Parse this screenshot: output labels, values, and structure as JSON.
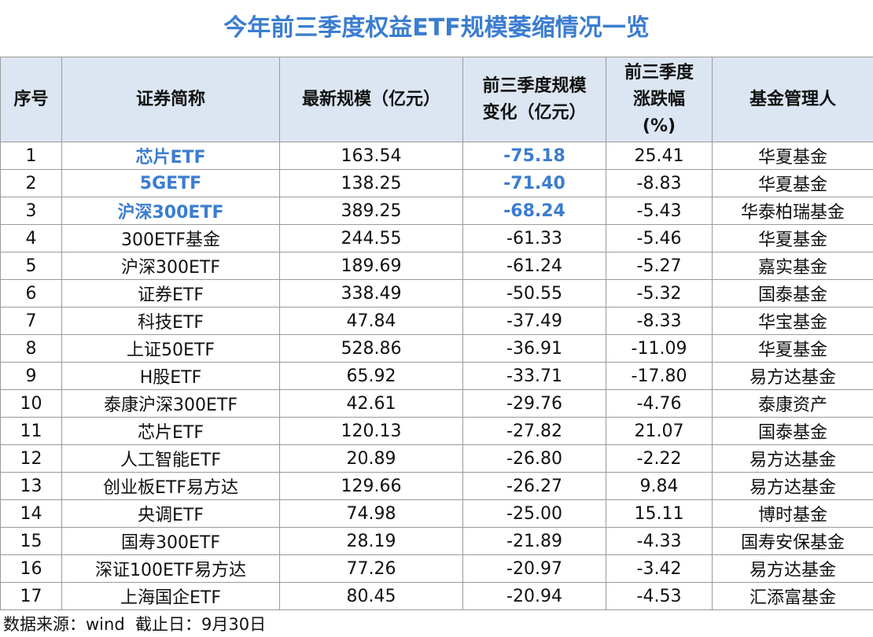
{
  "header": {
    "title": "今年前三季度权益ETF规模萎缩情况一览"
  },
  "table": {
    "columns": [
      "序号",
      "证券简称",
      "最新规模（亿元）",
      "前三季度规模\n变化（亿元）",
      "前三季度\n涨跌幅\n(%)",
      "基金管理人"
    ],
    "highlight_color": "#3b7dd0",
    "rows": [
      [
        "1",
        "芯片ETF",
        "163.54",
        "-75.18",
        "25.41",
        "华夏基金"
      ],
      [
        "2",
        "5GETF",
        "138.25",
        "-71.40",
        "-8.83",
        "华夏基金"
      ],
      [
        "3",
        "沪深300ETF",
        "389.25",
        "-68.24",
        "-5.43",
        "华泰柏瑞基金"
      ],
      [
        "4",
        "300ETF基金",
        "244.55",
        "-61.33",
        "-5.46",
        "华夏基金"
      ],
      [
        "5",
        "沪深300ETF",
        "189.69",
        "-61.24",
        "-5.27",
        "嘉实基金"
      ],
      [
        "6",
        "证券ETF",
        "338.49",
        "-50.55",
        "-5.32",
        "国泰基金"
      ],
      [
        "7",
        "科技ETF",
        "47.84",
        "-37.49",
        "-8.33",
        "华宝基金"
      ],
      [
        "8",
        "上证50ETF",
        "528.86",
        "-36.91",
        "-11.09",
        "华夏基金"
      ],
      [
        "9",
        "H股ETF",
        "65.92",
        "-33.71",
        "-17.80",
        "易方达基金"
      ],
      [
        "10",
        "泰康沪深300ETF",
        "42.61",
        "-29.76",
        "-4.76",
        "泰康资产"
      ],
      [
        "11",
        "芯片ETF",
        "120.13",
        "-27.82",
        "21.07",
        "国泰基金"
      ],
      [
        "12",
        "人工智能ETF",
        "20.89",
        "-26.80",
        "-2.22",
        "易方达基金"
      ],
      [
        "13",
        "创业板ETF易方达",
        "129.66",
        "-26.27",
        "9.84",
        "易方达基金"
      ],
      [
        "14",
        "央调ETF",
        "74.98",
        "-25.00",
        "15.11",
        "博时基金"
      ],
      [
        "15",
        "国寿300ETF",
        "28.19",
        "-21.89",
        "-4.33",
        "国寿安保基金"
      ],
      [
        "16",
        "深证100ETF易方达",
        "77.26",
        "-20.97",
        "-3.42",
        "易方达基金"
      ],
      [
        "17",
        "上海国企ETF",
        "80.45",
        "-20.94",
        "-4.53",
        "汇添富基金"
      ]
    ],
    "highlight": [
      [
        1,
        3
      ],
      [
        1,
        3
      ],
      [
        1,
        3
      ]
    ]
  },
  "footer": {
    "source": "数据来源：wind  截止日：9月30日"
  }
}
